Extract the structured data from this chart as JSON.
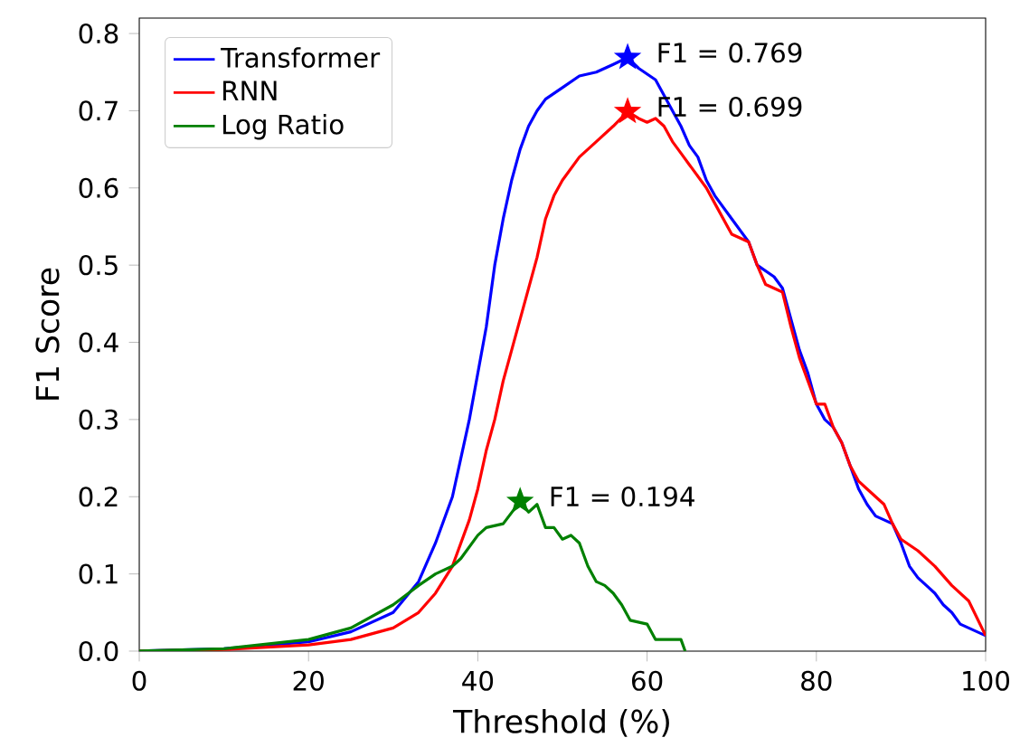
{
  "chart_data": {
    "type": "line",
    "xlabel": "Threshold (%)",
    "ylabel": "F1 Score",
    "xlim": [
      0,
      100
    ],
    "ylim": [
      0,
      0.82
    ],
    "xticks": [
      0,
      20,
      40,
      60,
      80,
      100
    ],
    "yticks": [
      {
        "value": 0,
        "label": "0.0"
      },
      {
        "value": 0.1,
        "label": "0.1"
      },
      {
        "value": 0.2,
        "label": "0.2"
      },
      {
        "value": 0.3,
        "label": "0.3"
      },
      {
        "value": 0.4,
        "label": "0.4"
      },
      {
        "value": 0.5,
        "label": "0.5"
      },
      {
        "value": 0.6,
        "label": "0.6"
      },
      {
        "value": 0.7,
        "label": "0.7"
      },
      {
        "value": 0.8,
        "label": "0.8"
      }
    ],
    "grid": false,
    "legend": "top left",
    "series": [
      {
        "name": "Transformer",
        "color": "#0000ff",
        "x": [
          0,
          10,
          20,
          25,
          30,
          33,
          35,
          37,
          38,
          39,
          40,
          41,
          42,
          43,
          44,
          45,
          46,
          47,
          48,
          50,
          52,
          54,
          56,
          57.7,
          59,
          61,
          62,
          63,
          64,
          65,
          66,
          67,
          68,
          70,
          72,
          73,
          75,
          76,
          77,
          78,
          79,
          80,
          81,
          82,
          83,
          84,
          85,
          86,
          87,
          88,
          89,
          90,
          91,
          92,
          93,
          94,
          95,
          96,
          97,
          98,
          99,
          100
        ],
        "values": [
          0,
          0.003,
          0.012,
          0.025,
          0.05,
          0.09,
          0.14,
          0.2,
          0.25,
          0.3,
          0.36,
          0.42,
          0.5,
          0.56,
          0.61,
          0.65,
          0.68,
          0.7,
          0.715,
          0.73,
          0.745,
          0.75,
          0.76,
          0.769,
          0.755,
          0.74,
          0.72,
          0.7,
          0.68,
          0.655,
          0.64,
          0.61,
          0.59,
          0.56,
          0.53,
          0.5,
          0.485,
          0.47,
          0.43,
          0.39,
          0.36,
          0.32,
          0.3,
          0.29,
          0.27,
          0.24,
          0.21,
          0.19,
          0.175,
          0.17,
          0.165,
          0.14,
          0.11,
          0.095,
          0.085,
          0.075,
          0.06,
          0.05,
          0.035,
          0.03,
          0.025,
          0.02
        ]
      },
      {
        "name": "RNN",
        "color": "#ff0000",
        "x": [
          0,
          10,
          20,
          25,
          30,
          33,
          35,
          37,
          39,
          40,
          41,
          42,
          43,
          44,
          45,
          46,
          47,
          48,
          49,
          50,
          52,
          54,
          56,
          57.7,
          59,
          60,
          61,
          62,
          63,
          64,
          65,
          67,
          68,
          70,
          72,
          73,
          74,
          76,
          77,
          78,
          79,
          80,
          81,
          82,
          83,
          84,
          85,
          86,
          88,
          89,
          90,
          92,
          94,
          96,
          98,
          100
        ],
        "values": [
          0,
          0.002,
          0.008,
          0.015,
          0.03,
          0.05,
          0.075,
          0.11,
          0.17,
          0.21,
          0.26,
          0.3,
          0.35,
          0.39,
          0.43,
          0.47,
          0.51,
          0.56,
          0.59,
          0.61,
          0.64,
          0.66,
          0.68,
          0.699,
          0.69,
          0.685,
          0.69,
          0.68,
          0.66,
          0.645,
          0.63,
          0.6,
          0.58,
          0.54,
          0.53,
          0.5,
          0.475,
          0.465,
          0.42,
          0.38,
          0.35,
          0.32,
          0.32,
          0.29,
          0.27,
          0.24,
          0.22,
          0.21,
          0.19,
          0.165,
          0.145,
          0.13,
          0.11,
          0.085,
          0.065,
          0.02
        ]
      },
      {
        "name": "Log Ratio",
        "color": "#008000",
        "x": [
          0,
          10,
          20,
          25,
          30,
          33,
          35,
          37,
          38,
          39,
          40,
          41,
          43,
          45,
          46,
          47,
          48,
          49,
          50,
          51,
          52,
          53,
          54,
          55,
          56,
          57,
          58,
          60,
          61,
          64,
          64.5
        ],
        "values": [
          0,
          0.003,
          0.015,
          0.03,
          0.06,
          0.085,
          0.1,
          0.11,
          0.12,
          0.135,
          0.15,
          0.16,
          0.165,
          0.194,
          0.18,
          0.19,
          0.16,
          0.16,
          0.145,
          0.15,
          0.14,
          0.11,
          0.09,
          0.085,
          0.075,
          0.06,
          0.04,
          0.035,
          0.015,
          0.015,
          0
        ]
      },
      {
        "color": "#0000ff",
        "type": "scatter",
        "marker": "star",
        "x": [
          57.7
        ],
        "values": [
          0.769
        ],
        "value_labels": [
          "F1 = 0.769"
        ]
      },
      {
        "color": "#ff0000",
        "type": "scatter",
        "marker": "star",
        "x": [
          57.7
        ],
        "values": [
          0.699
        ],
        "value_labels": [
          "F1 = 0.699"
        ]
      },
      {
        "color": "#008000",
        "type": "scatter",
        "marker": "star",
        "x": [
          45
        ],
        "values": [
          0.194
        ],
        "value_labels": [
          "F1 = 0.194"
        ]
      }
    ]
  }
}
